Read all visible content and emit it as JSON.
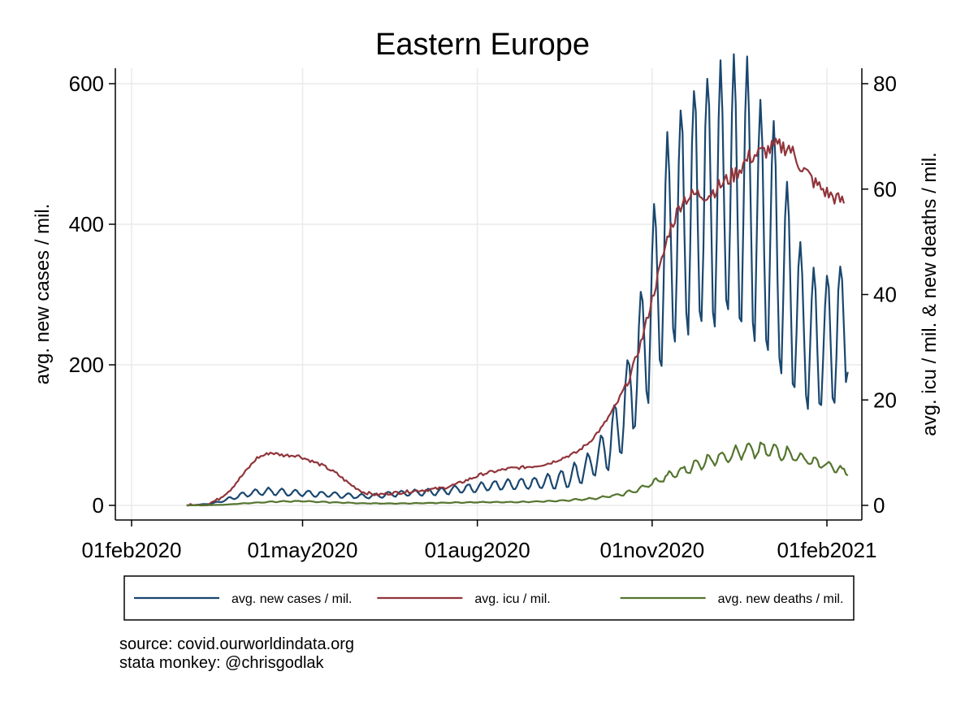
{
  "chart_data": {
    "type": "line",
    "title": "Eastern Europe",
    "ylabel_left": "avg. new cases / mil.",
    "ylabel_right": "avg. icu / mil. & new deaths / mil.",
    "xlabel": "",
    "x_ticks": [
      "01feb2020",
      "01may2020",
      "01aug2020",
      "01nov2020",
      "01feb2021"
    ],
    "y_left_ticks": [
      "0",
      "200",
      "400",
      "600"
    ],
    "y_right_ticks": [
      "0",
      "20",
      "40",
      "60",
      "80"
    ],
    "ylim_left": [
      0,
      600
    ],
    "ylim_right": [
      0,
      80
    ],
    "xlim": [
      "2020-02-01",
      "2021-02-01"
    ],
    "grid": true,
    "legend_position": "bottom",
    "series": [
      {
        "name": "avg. new cases / mil.",
        "axis": "left",
        "color": "#1a476f",
        "points": [
          [
            "2020-03-01",
            0
          ],
          [
            "2020-03-08",
            1
          ],
          [
            "2020-03-15",
            3
          ],
          [
            "2020-03-22",
            8
          ],
          [
            "2020-03-29",
            14
          ],
          [
            "2020-04-05",
            18
          ],
          [
            "2020-04-12",
            20
          ],
          [
            "2020-04-19",
            19
          ],
          [
            "2020-04-26",
            18
          ],
          [
            "2020-05-03",
            17
          ],
          [
            "2020-05-10",
            16
          ],
          [
            "2020-05-17",
            15
          ],
          [
            "2020-05-24",
            14
          ],
          [
            "2020-05-31",
            13
          ],
          [
            "2020-06-07",
            13
          ],
          [
            "2020-06-14",
            15
          ],
          [
            "2020-06-21",
            17
          ],
          [
            "2020-06-28",
            18
          ],
          [
            "2020-07-05",
            19
          ],
          [
            "2020-07-12",
            20
          ],
          [
            "2020-07-19",
            22
          ],
          [
            "2020-07-26",
            24
          ],
          [
            "2020-08-02",
            26
          ],
          [
            "2020-08-09",
            28
          ],
          [
            "2020-08-16",
            29
          ],
          [
            "2020-08-23",
            30
          ],
          [
            "2020-08-30",
            31
          ],
          [
            "2020-09-06",
            33
          ],
          [
            "2020-09-13",
            36
          ],
          [
            "2020-09-20",
            42
          ],
          [
            "2020-09-27",
            52
          ],
          [
            "2020-10-04",
            68
          ],
          [
            "2020-10-11",
            95
          ],
          [
            "2020-10-18",
            140
          ],
          [
            "2020-10-25",
            205
          ],
          [
            "2020-11-01",
            290
          ],
          [
            "2020-11-08",
            360
          ],
          [
            "2020-11-15",
            400
          ],
          [
            "2020-11-22",
            420
          ],
          [
            "2020-11-29",
            430
          ],
          [
            "2020-12-06",
            440
          ],
          [
            "2020-12-13",
            450
          ],
          [
            "2020-12-20",
            440
          ],
          [
            "2020-12-27",
            410
          ],
          [
            "2021-01-03",
            380
          ],
          [
            "2021-01-10",
            330
          ],
          [
            "2021-01-17",
            270
          ],
          [
            "2021-01-24",
            240
          ],
          [
            "2021-01-31",
            230
          ],
          [
            "2021-02-07",
            240
          ],
          [
            "2021-02-12",
            280
          ]
        ],
        "weekly_swing_left_units": {
          "description_free": true,
          "points": [
            [
              "2020-09-01",
              8
            ],
            [
              "2020-10-01",
              20
            ],
            [
              "2020-10-20",
              60
            ],
            [
              "2020-11-01",
              130
            ],
            [
              "2020-11-15",
              170
            ],
            [
              "2020-12-01",
              190
            ],
            [
              "2020-12-20",
              190
            ],
            [
              "2021-01-05",
              170
            ],
            [
              "2021-01-20",
              110
            ],
            [
              "2021-02-12",
              100
            ]
          ]
        }
      },
      {
        "name": "avg. icu / mil.",
        "axis": "right",
        "color": "#90353b",
        "points": [
          [
            "2020-03-01",
            0
          ],
          [
            "2020-03-10",
            0
          ],
          [
            "2020-03-17",
            1
          ],
          [
            "2020-03-24",
            3
          ],
          [
            "2020-03-31",
            6
          ],
          [
            "2020-04-07",
            9
          ],
          [
            "2020-04-14",
            10
          ],
          [
            "2020-04-21",
            9.5
          ],
          [
            "2020-04-28",
            9.5
          ],
          [
            "2020-05-05",
            8.5
          ],
          [
            "2020-05-12",
            7.5
          ],
          [
            "2020-05-19",
            6
          ],
          [
            "2020-05-26",
            4
          ],
          [
            "2020-06-02",
            2.5
          ],
          [
            "2020-06-09",
            2
          ],
          [
            "2020-06-16",
            2.3
          ],
          [
            "2020-06-23",
            2.5
          ],
          [
            "2020-06-30",
            2.8
          ],
          [
            "2020-07-07",
            3
          ],
          [
            "2020-07-14",
            3.3
          ],
          [
            "2020-07-21",
            4
          ],
          [
            "2020-07-28",
            5
          ],
          [
            "2020-08-04",
            6
          ],
          [
            "2020-08-11",
            6.5
          ],
          [
            "2020-08-18",
            7
          ],
          [
            "2020-08-25",
            7.2
          ],
          [
            "2020-09-01",
            7.5
          ],
          [
            "2020-09-08",
            8
          ],
          [
            "2020-09-15",
            9
          ],
          [
            "2020-09-22",
            10
          ],
          [
            "2020-09-29",
            12
          ],
          [
            "2020-10-06",
            15
          ],
          [
            "2020-10-13",
            19
          ],
          [
            "2020-10-20",
            24
          ],
          [
            "2020-10-27",
            32
          ],
          [
            "2020-11-03",
            42
          ],
          [
            "2020-11-10",
            52
          ],
          [
            "2020-11-17",
            58
          ],
          [
            "2020-11-24",
            59
          ],
          [
            "2020-12-01",
            59
          ],
          [
            "2020-12-08",
            61
          ],
          [
            "2020-12-15",
            63
          ],
          [
            "2020-12-22",
            66
          ],
          [
            "2020-12-29",
            67
          ],
          [
            "2021-01-05",
            68
          ],
          [
            "2021-01-12",
            68
          ],
          [
            "2021-01-19",
            64
          ],
          [
            "2021-01-26",
            61
          ],
          [
            "2021-02-02",
            59
          ],
          [
            "2021-02-07",
            58
          ],
          [
            "2021-02-10",
            57.5
          ]
        ]
      },
      {
        "name": "avg. new deaths / mil.",
        "axis": "right",
        "color": "#55752f",
        "points": [
          [
            "2020-03-01",
            0
          ],
          [
            "2020-03-20",
            0.1
          ],
          [
            "2020-04-01",
            0.4
          ],
          [
            "2020-04-15",
            0.7
          ],
          [
            "2020-05-01",
            0.8
          ],
          [
            "2020-05-15",
            0.6
          ],
          [
            "2020-06-01",
            0.4
          ],
          [
            "2020-06-15",
            0.35
          ],
          [
            "2020-07-01",
            0.4
          ],
          [
            "2020-07-15",
            0.5
          ],
          [
            "2020-08-01",
            0.6
          ],
          [
            "2020-08-15",
            0.6
          ],
          [
            "2020-09-01",
            0.7
          ],
          [
            "2020-09-15",
            0.9
          ],
          [
            "2020-10-01",
            1.3
          ],
          [
            "2020-10-15",
            2
          ],
          [
            "2020-10-25",
            3
          ],
          [
            "2020-11-01",
            4.2
          ],
          [
            "2020-11-10",
            5.6
          ],
          [
            "2020-11-20",
            7
          ],
          [
            "2020-11-30",
            8.5
          ],
          [
            "2020-12-10",
            9.5
          ],
          [
            "2020-12-20",
            10.3
          ],
          [
            "2020-12-31",
            10.5
          ],
          [
            "2021-01-10",
            10
          ],
          [
            "2021-01-20",
            8.8
          ],
          [
            "2021-01-30",
            7.8
          ],
          [
            "2021-02-07",
            6.8
          ],
          [
            "2021-02-12",
            6.2
          ]
        ]
      }
    ]
  },
  "legend": {
    "items": [
      {
        "label": "avg. new cases / mil.",
        "color": "#1a476f"
      },
      {
        "label": "avg. icu / mil.",
        "color": "#90353b"
      },
      {
        "label": "avg. new deaths / mil.",
        "color": "#55752f"
      }
    ]
  },
  "footer": {
    "source": "source: covid.ourworldindata.org",
    "credit": "stata monkey: @chrisgodlak"
  }
}
